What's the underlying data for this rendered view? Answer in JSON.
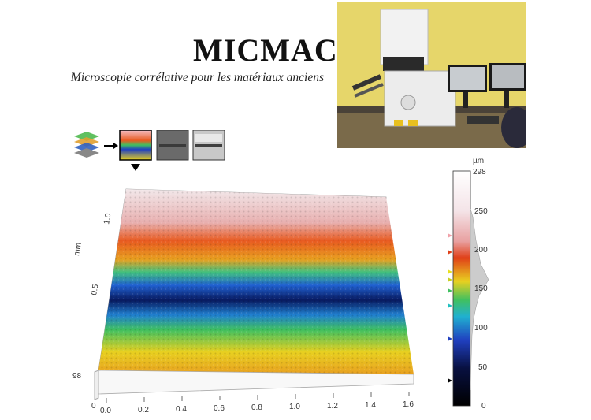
{
  "header": {
    "title": "MICMAC",
    "subtitle": "Microscopie corrélative pour les matériaux anciens"
  },
  "chart_data": {
    "type": "heatmap",
    "x_ticks": [
      "0.0",
      "0.2",
      "0.4",
      "0.6",
      "0.8",
      "1.0",
      "1.2",
      "1.4",
      "1.6"
    ],
    "y_ticks": [
      "1.0",
      "0.5"
    ],
    "ylabel": "mm",
    "corner_label": "98",
    "colorbar": {
      "unit": "µm",
      "max_label": "298",
      "ticks": [
        "250",
        "200",
        "150",
        "100",
        "50",
        "0"
      ],
      "range": [
        0,
        298
      ]
    }
  },
  "colors": {
    "high": "#f0e8ea",
    "orange": "#e85a20",
    "yellow": "#e8d020",
    "green": "#40c060",
    "cyan": "#20b0d0",
    "blue": "#2040c0",
    "dark": "#081040"
  },
  "icons": [
    "layer-stack-icon",
    "arrow-right-icon",
    "heightmap-thumbnail",
    "sem-thumbnail",
    "grayscale-thumbnail",
    "selection-pointer-icon"
  ]
}
